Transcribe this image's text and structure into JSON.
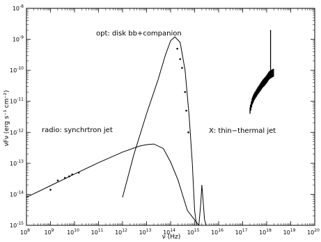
{
  "chart_data": {
    "type": "line",
    "xlabel": "ν (Hz)",
    "ylabel": "νFν (erg s⁻¹ cm⁻²)",
    "xscale": "log",
    "yscale": "log",
    "xlim": [
      100000000.0,
      1e+20
    ],
    "ylim": [
      1e-15,
      1e-08
    ],
    "x_tick_exponents": [
      8,
      9,
      10,
      11,
      12,
      13,
      14,
      15,
      16,
      17,
      18,
      19,
      20
    ],
    "y_tick_exponents": [
      -15,
      -14,
      -13,
      -12,
      -11,
      -10,
      -9,
      -8
    ],
    "grid": false,
    "annotations": [
      "opt: disk bb+companion",
      "radio: synchrtron jet",
      "X: thin−thermal jet"
    ],
    "series": [
      {
        "style": "line",
        "x": [
          100000000.0,
          1000000000.0,
          10000000000.0,
          100000000000.0,
          1000000000000.0,
          5000000000000.0,
          10000000000000.0,
          20000000000000.0,
          50000000000000.0,
          100000000000000.0,
          200000000000000.0,
          500000000000000.0,
          1000000000000000.0,
          1500000000000000.0
        ],
        "y": [
          8e-15,
          1.9e-14,
          4.5e-14,
          1.05e-13,
          2.3e-13,
          3.6e-13,
          4e-13,
          4.2e-13,
          3e-13,
          1.1e-13,
          3e-14,
          3e-15,
          1.5e-15,
          1e-15
        ]
      },
      {
        "style": "line",
        "x": [
          1000000000000.0,
          3000000000000.0,
          10000000000000.0,
          30000000000000.0,
          60000000000000.0,
          100000000000000.0,
          150000000000000.0,
          250000000000000.0,
          400000000000000.0,
          600000000000000.0,
          800000000000000.0,
          1000000000000000.0,
          1200000000000000.0
        ],
        "y": [
          8e-15,
          2e-13,
          4e-12,
          5e-11,
          3e-10,
          9e-10,
          1.2e-09,
          8e-10,
          1e-10,
          3e-12,
          1e-13,
          3e-15,
          1e-15
        ]
      },
      {
        "style": "line",
        "x": [
          1500000000000000.0,
          1800000000000000.0,
          2000000000000000.0,
          2300000000000000.0,
          2600000000000000.0,
          3000000000000000.0
        ],
        "y": [
          1e-15,
          5e-15,
          2e-14,
          5e-15,
          1.5e-15,
          1e-15
        ]
      },
      {
        "style": "points",
        "x": [
          1000000000.0,
          2000000000.0,
          4000000000.0,
          6000000000.0,
          8000000000.0,
          15000000000.0,
          190000000000000.0,
          250000000000000.0,
          300000000000000.0,
          400000000000000.0,
          450000000000000.0,
          550000000000000.0
        ],
        "y": [
          1.4e-14,
          2.8e-14,
          3.4e-14,
          3.8e-14,
          4.4e-14,
          5e-14,
          5e-10,
          2.3e-10,
          1.2e-10,
          2e-11,
          5e-12,
          1e-12
        ]
      },
      {
        "style": "xray",
        "x": [
          2e+17,
          2.5e+17,
          3e+17,
          4e+17,
          5e+17,
          6e+17,
          7e+17,
          8e+17,
          9e+17,
          1e+18,
          1.1e+18,
          1.2e+18,
          1.3e+18,
          1.5e+18,
          1.7e+18,
          2e+18
        ],
        "y": [
          5e-12,
          1e-11,
          1.4e-11,
          2e-11,
          2.6e-11,
          3.2e-11,
          3.8e-11,
          4.2e-11,
          4.7e-11,
          5.2e-11,
          5.8e-11,
          6.5e-11,
          7e-11,
          7.5e-11,
          8e-11,
          8.5e-11
        ]
      }
    ]
  }
}
